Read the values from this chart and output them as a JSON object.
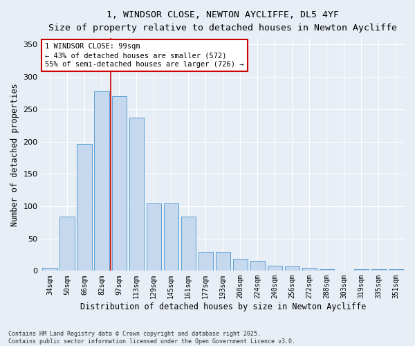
{
  "title_line1": "1, WINDSOR CLOSE, NEWTON AYCLIFFE, DL5 4YF",
  "title_line2": "Size of property relative to detached houses in Newton Aycliffe",
  "xlabel": "Distribution of detached houses by size in Newton Aycliffe",
  "ylabel": "Number of detached properties",
  "categories": [
    "34sqm",
    "50sqm",
    "66sqm",
    "82sqm",
    "97sqm",
    "113sqm",
    "129sqm",
    "145sqm",
    "161sqm",
    "177sqm",
    "193sqm",
    "208sqm",
    "224sqm",
    "240sqm",
    "256sqm",
    "272sqm",
    "288sqm",
    "303sqm",
    "319sqm",
    "335sqm",
    "351sqm"
  ],
  "values": [
    5,
    84,
    196,
    278,
    270,
    237,
    104,
    104,
    84,
    29,
    29,
    19,
    15,
    8,
    7,
    5,
    2,
    0,
    3,
    2,
    2
  ],
  "bar_color": "#c5d8ed",
  "bar_edge_color": "#5a9fd4",
  "vline_x": 3.5,
  "vline_color": "#cc0000",
  "annotation_text": "1 WINDSOR CLOSE: 99sqm\n← 43% of detached houses are smaller (572)\n55% of semi-detached houses are larger (726) →",
  "annotation_box_color": "#ffffff",
  "annotation_box_edge": "#cc0000",
  "ylim": [
    0,
    360
  ],
  "yticks": [
    0,
    50,
    100,
    150,
    200,
    250,
    300,
    350
  ],
  "background_color": "#e8eef5",
  "grid_color": "#ffffff",
  "footnote": "Contains HM Land Registry data © Crown copyright and database right 2025.\nContains public sector information licensed under the Open Government Licence v3.0."
}
